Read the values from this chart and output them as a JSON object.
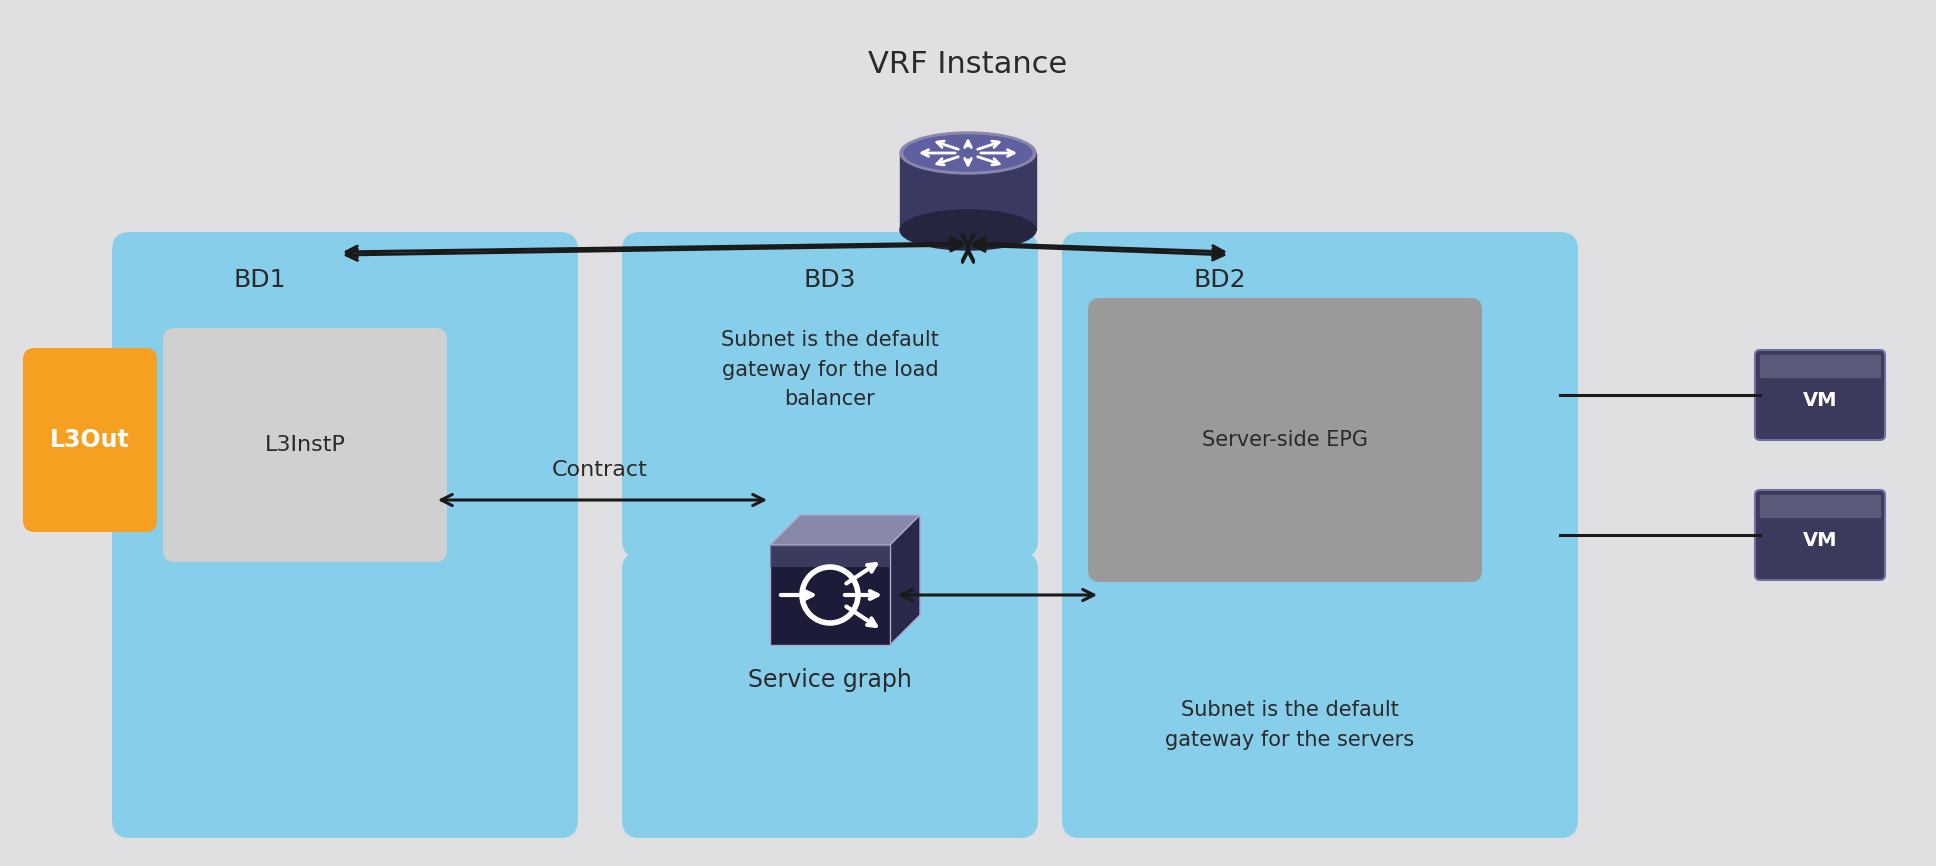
{
  "title": "VRF Instance",
  "bg_color": "#e0e0e2",
  "bd_color": "#87CEEB",
  "l3out_color": "#F5A020",
  "l3instp_color": "#d0d0d0",
  "server_epg_color": "#9a9a9a",
  "vm_top_color": "#5a5a7a",
  "vm_body_color": "#3a3a5c",
  "router_body_color": "#3a3a5c",
  "router_top_color": "#7070a0",
  "router_bot_color": "#252545",
  "sg_front_color": "#1c1c38",
  "sg_top_color": "#8888a8",
  "sg_right_color": "#28284a",
  "text_dark": "#2a2a2a",
  "text_white": "#ffffff",
  "arrow_color": "#1a1a1a",
  "bd1_label": "BD1",
  "bd2_label": "BD2",
  "bd3_label": "BD3",
  "bd3_sub": "Subnet is the default\ngateway for the load\nbalancer",
  "bd2_sub": "Subnet is the default\ngateway for the servers",
  "l3out_label": "L3Out",
  "l3instp_label": "L3InstP",
  "server_epg_label": "Server-side EPG",
  "sg_label": "Service graph",
  "contract_label": "Contract",
  "vm_label": "VM"
}
